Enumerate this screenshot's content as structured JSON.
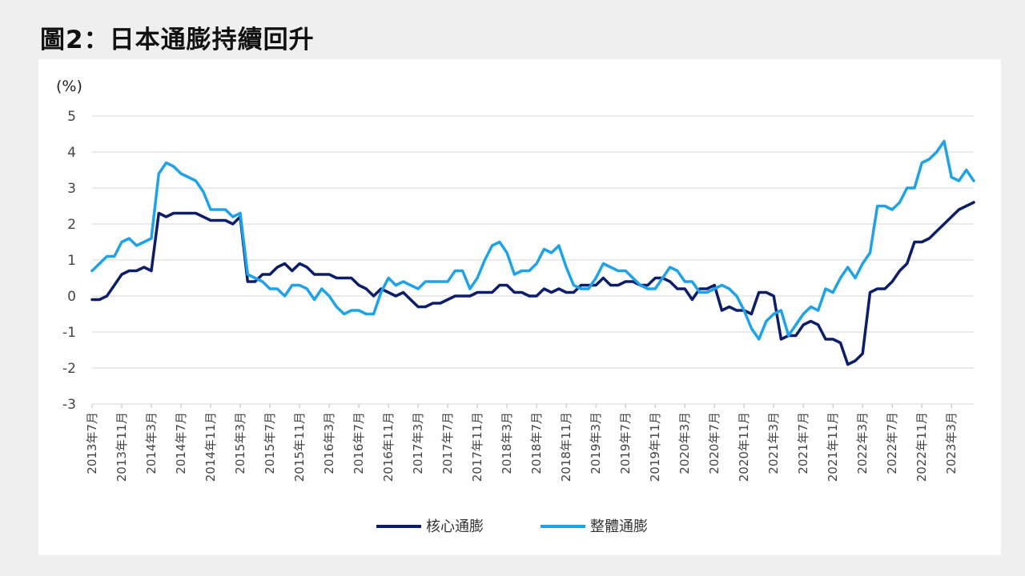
{
  "title": "圖2：日本通膨持續回升",
  "chart_data": {
    "type": "line",
    "title": "圖2：日本通膨持續回升",
    "ylabel": "(%)",
    "xlabel": "",
    "ylim": [
      -3,
      5
    ],
    "yticks": [
      5,
      4,
      3,
      2,
      1,
      0,
      -1,
      -2,
      -3
    ],
    "grid": true,
    "legend_position": "bottom-center",
    "x_start": "2013-07",
    "x_step_months": 1,
    "x_tick_labels": [
      "2013年7月",
      "2013年11月",
      "2014年3月",
      "2014年7月",
      "2014年11月",
      "2015年3月",
      "2015年7月",
      "2015年11月",
      "2016年3月",
      "2016年7月",
      "2016年11月",
      "2017年3月",
      "2017年7月",
      "2017年11月",
      "2018年3月",
      "2018年7月",
      "2018年11月",
      "2019年3月",
      "2019年7月",
      "2019年11月",
      "2020年3月",
      "2020年7月",
      "2020年11月",
      "2021年3月",
      "2021年7月",
      "2021年11月",
      "2022年3月",
      "2022年7月",
      "2022年11月",
      "2023年3月"
    ],
    "series": [
      {
        "name": "核心通膨",
        "color": "#0b1d6b",
        "values": [
          -0.1,
          -0.1,
          0.0,
          0.3,
          0.6,
          0.7,
          0.7,
          0.8,
          0.7,
          2.3,
          2.2,
          2.3,
          2.3,
          2.3,
          2.3,
          2.2,
          2.1,
          2.1,
          2.1,
          2.0,
          2.2,
          0.4,
          0.4,
          0.6,
          0.6,
          0.8,
          0.9,
          0.7,
          0.9,
          0.8,
          0.6,
          0.6,
          0.6,
          0.5,
          0.5,
          0.5,
          0.3,
          0.2,
          0.0,
          0.2,
          0.1,
          0.0,
          0.1,
          -0.1,
          -0.3,
          -0.3,
          -0.2,
          -0.2,
          -0.1,
          0.0,
          0.0,
          0.0,
          0.1,
          0.1,
          0.1,
          0.3,
          0.3,
          0.1,
          0.1,
          0.0,
          0.0,
          0.2,
          0.1,
          0.2,
          0.1,
          0.1,
          0.3,
          0.3,
          0.3,
          0.5,
          0.3,
          0.3,
          0.4,
          0.4,
          0.3,
          0.3,
          0.5,
          0.5,
          0.4,
          0.2,
          0.2,
          -0.1,
          0.2,
          0.2,
          0.3,
          -0.4,
          -0.3,
          -0.4,
          -0.4,
          -0.5,
          0.1,
          0.1,
          0.0,
          -1.2,
          -1.1,
          -1.1,
          -0.8,
          -0.7,
          -0.8,
          -1.2,
          -1.2,
          -1.3,
          -1.9,
          -1.8,
          -1.6,
          0.1,
          0.2,
          0.2,
          0.4,
          0.7,
          0.9,
          1.5,
          1.5,
          1.6,
          1.8,
          2.0,
          2.2,
          2.4,
          2.5,
          2.6
        ]
      },
      {
        "name": "整體通膨",
        "color": "#1ea2ea",
        "values": [
          0.7,
          0.9,
          1.1,
          1.1,
          1.5,
          1.6,
          1.4,
          1.5,
          1.6,
          3.4,
          3.7,
          3.6,
          3.4,
          3.3,
          3.2,
          2.9,
          2.4,
          2.4,
          2.4,
          2.2,
          2.3,
          0.6,
          0.5,
          0.4,
          0.2,
          0.2,
          0.0,
          0.3,
          0.3,
          0.2,
          -0.1,
          0.2,
          0.0,
          -0.3,
          -0.5,
          -0.4,
          -0.4,
          -0.5,
          -0.5,
          0.1,
          0.5,
          0.3,
          0.4,
          0.3,
          0.2,
          0.4,
          0.4,
          0.4,
          0.4,
          0.7,
          0.7,
          0.2,
          0.5,
          1.0,
          1.4,
          1.5,
          1.2,
          0.6,
          0.7,
          0.7,
          0.9,
          1.3,
          1.2,
          1.4,
          0.8,
          0.3,
          0.2,
          0.2,
          0.5,
          0.9,
          0.8,
          0.7,
          0.7,
          0.5,
          0.3,
          0.2,
          0.2,
          0.5,
          0.8,
          0.7,
          0.4,
          0.4,
          0.1,
          0.1,
          0.2,
          0.3,
          0.2,
          0.0,
          -0.4,
          -0.9,
          -1.2,
          -0.7,
          -0.5,
          -0.4,
          -1.1,
          -0.8,
          -0.5,
          -0.3,
          -0.4,
          0.2,
          0.1,
          0.5,
          0.8,
          0.5,
          0.9,
          1.2,
          2.5,
          2.5,
          2.4,
          2.6,
          3.0,
          3.0,
          3.7,
          3.8,
          4.0,
          4.3,
          3.3,
          3.2,
          3.5,
          3.2
        ]
      }
    ]
  }
}
